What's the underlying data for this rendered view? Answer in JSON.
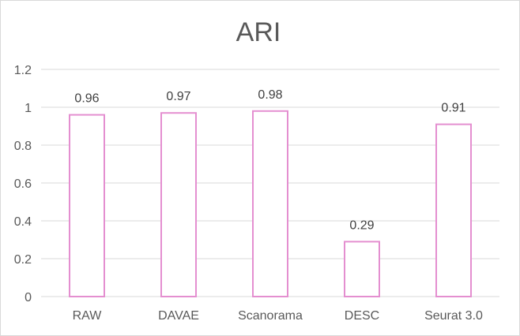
{
  "chart_data": {
    "type": "bar",
    "title": "ARI",
    "categories": [
      "RAW",
      "DAVAE",
      "Scanorama",
      "DESC",
      "Seurat 3.0"
    ],
    "values": [
      0.96,
      0.97,
      0.98,
      0.29,
      0.91
    ],
    "data_labels": [
      "0.96",
      "0.97",
      "0.98",
      "0.29",
      "0.91"
    ],
    "ylim": [
      0,
      1.2
    ],
    "yticks": [
      "0",
      "0.2",
      "0.4",
      "0.6",
      "0.8",
      "1",
      "1.2"
    ],
    "ytick_values": [
      0,
      0.2,
      0.4,
      0.6,
      0.8,
      1,
      1.2
    ],
    "grid": true,
    "legend": "none",
    "bar_color": "#e48fd0",
    "bar_fill": "#ffffff"
  }
}
